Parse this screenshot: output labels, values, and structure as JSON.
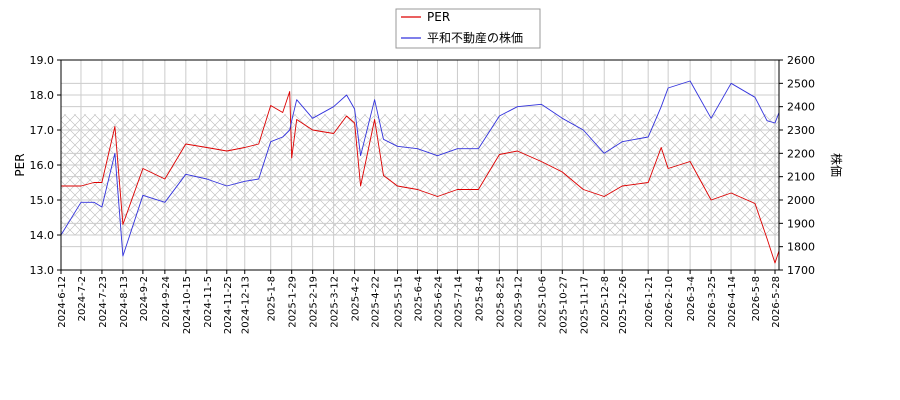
{
  "chart_data": {
    "type": "line",
    "legend": {
      "placement": "top-center",
      "entries": [
        {
          "label": "PER",
          "color": "#dd0000"
        },
        {
          "label": "平和不動産の株価",
          "color": "#3333dd"
        }
      ]
    },
    "xlabel": "",
    "ylabel_left": "PER",
    "ylabel_right": "株価",
    "ylim_left": [
      13.0,
      19.0
    ],
    "ylim_right": [
      1700,
      2600
    ],
    "yticks_left": [
      "13.0",
      "14.0",
      "15.0",
      "16.0",
      "17.0",
      "18.0",
      "19.0"
    ],
    "yticks_right": [
      "1700",
      "1800",
      "1900",
      "2000",
      "2100",
      "2200",
      "2300",
      "2400",
      "2500",
      "2600"
    ],
    "xticks": [
      "2024-6-12",
      "2024-7-2",
      "2024-7-23",
      "2024-8-13",
      "2024-9-2",
      "2024-9-24",
      "2024-10-15",
      "2024-11-5",
      "2024-11-25",
      "2024-12-13",
      "2025-1-8",
      "2025-1-29",
      "2025-2-19",
      "2025-3-12",
      "2025-4-2",
      "2025-4-22",
      "2025-5-15",
      "2025-6-4",
      "2025-6-24",
      "2025-7-14",
      "2025-8-4",
      "2025-8-25",
      "2025-9-12",
      "2025-10-6",
      "2025-10-27",
      "2025-11-17",
      "2025-12-8",
      "2025-12-26",
      "2026-1-21",
      "2026-2-10",
      "2026-3-4",
      "2026-3-25",
      "2026-4-14",
      "2026-5-8",
      "2026-5-28"
    ],
    "grid": true,
    "hatched_band_left": [
      14.0,
      17.45
    ],
    "series": [
      {
        "name": "PER",
        "axis": "left",
        "color": "#dd0000",
        "x": [
          "2024-6-12",
          "2024-7-2",
          "2024-7-15",
          "2024-7-23",
          "2024-8-5",
          "2024-8-13",
          "2024-9-2",
          "2024-9-24",
          "2024-10-15",
          "2024-11-5",
          "2024-11-25",
          "2024-12-13",
          "2024-12-27",
          "2025-1-8",
          "2025-1-20",
          "2025-1-27",
          "2025-1-29",
          "2025-2-3",
          "2025-2-19",
          "2025-3-12",
          "2025-3-25",
          "2025-4-2",
          "2025-4-8",
          "2025-4-22",
          "2025-5-1",
          "2025-5-15",
          "2025-6-4",
          "2025-6-24",
          "2025-7-14",
          "2025-8-4",
          "2025-8-25",
          "2025-9-12",
          "2025-10-6",
          "2025-10-27",
          "2025-11-17",
          "2025-12-8",
          "2025-12-26",
          "2026-1-21",
          "2026-2-3",
          "2026-2-10",
          "2026-3-4",
          "2026-3-25",
          "2026-4-14",
          "2026-5-8",
          "2026-5-20",
          "2026-5-28",
          "2026-6-5"
        ],
        "values": [
          15.4,
          15.4,
          15.5,
          15.5,
          17.1,
          14.3,
          15.9,
          15.6,
          16.6,
          16.5,
          16.4,
          16.5,
          16.6,
          17.7,
          17.5,
          18.1,
          16.2,
          17.3,
          17.0,
          16.9,
          17.4,
          17.2,
          15.4,
          17.3,
          15.7,
          15.4,
          15.3,
          15.1,
          15.3,
          15.3,
          16.3,
          16.4,
          16.1,
          15.8,
          15.3,
          15.1,
          15.4,
          15.5,
          16.5,
          15.9,
          16.1,
          15.0,
          15.2,
          14.9,
          13.9,
          13.2,
          13.9
        ]
      },
      {
        "name": "平和不動産の株価",
        "axis": "right",
        "color": "#3333dd",
        "x": [
          "2024-6-12",
          "2024-7-2",
          "2024-7-15",
          "2024-7-23",
          "2024-8-5",
          "2024-8-13",
          "2024-9-2",
          "2024-9-24",
          "2024-10-15",
          "2024-11-5",
          "2024-11-25",
          "2024-12-13",
          "2024-12-27",
          "2025-1-8",
          "2025-1-20",
          "2025-1-27",
          "2025-1-29",
          "2025-2-3",
          "2025-2-19",
          "2025-3-12",
          "2025-3-25",
          "2025-4-2",
          "2025-4-8",
          "2025-4-22",
          "2025-5-1",
          "2025-5-15",
          "2025-6-4",
          "2025-6-24",
          "2025-7-14",
          "2025-8-4",
          "2025-8-25",
          "2025-9-12",
          "2025-10-6",
          "2025-10-27",
          "2025-11-17",
          "2025-12-8",
          "2025-12-26",
          "2026-1-21",
          "2026-2-3",
          "2026-2-10",
          "2026-3-4",
          "2026-3-25",
          "2026-4-14",
          "2026-5-8",
          "2026-5-20",
          "2026-5-28",
          "2026-6-5"
        ],
        "values": [
          1850,
          1990,
          1990,
          1970,
          2200,
          1760,
          2020,
          1990,
          2110,
          2090,
          2060,
          2080,
          2090,
          2250,
          2270,
          2300,
          2340,
          2430,
          2350,
          2400,
          2450,
          2390,
          2190,
          2430,
          2260,
          2230,
          2220,
          2190,
          2220,
          2220,
          2360,
          2400,
          2410,
          2350,
          2300,
          2200,
          2250,
          2270,
          2400,
          2480,
          2510,
          2350,
          2500,
          2440,
          2340,
          2330,
          2420
        ]
      }
    ]
  }
}
